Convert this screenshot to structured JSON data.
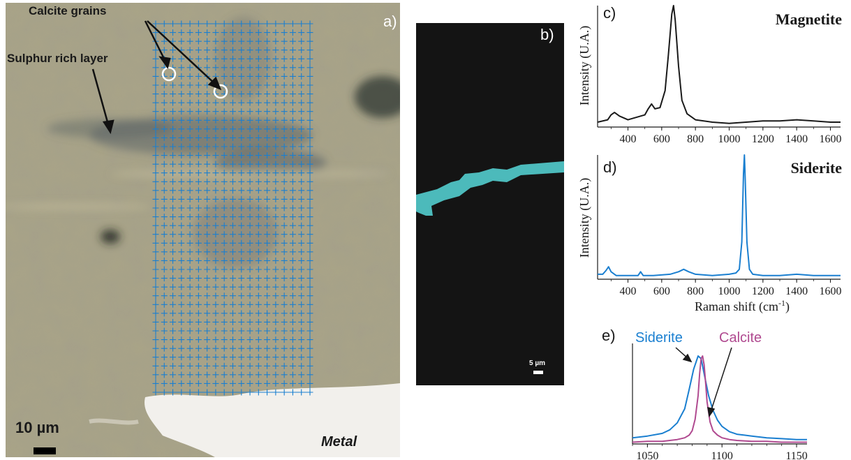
{
  "panel_a": {
    "letter": "a)",
    "annotations": {
      "calcite": "Calcite grains",
      "sulphur": "Sulphur rich layer",
      "metal": "Metal",
      "scale": "10 µm"
    },
    "grid_color": "#1a7fd0"
  },
  "panel_b": {
    "letter": "b)",
    "scale": "5 µm",
    "band_color": "#4fc3c4"
  },
  "chart_data": [
    {
      "id": "c",
      "type": "line",
      "panel_letter": "c)",
      "title": "Magnetite",
      "ylabel": "Intensity (U.A.)",
      "xlabel": "",
      "xlim": [
        220,
        1660
      ],
      "ylim": [
        0,
        1
      ],
      "xticks": [
        400,
        600,
        800,
        1000,
        1200,
        1400,
        1600
      ],
      "color": "#1a1a1a",
      "series": [
        {
          "x": [
            220,
            280,
            300,
            320,
            350,
            400,
            450,
            500,
            520,
            540,
            560,
            590,
            620,
            640,
            660,
            670,
            680,
            700,
            720,
            750,
            800,
            900,
            1000,
            1100,
            1200,
            1300,
            1400,
            1500,
            1600,
            1660
          ],
          "y": [
            0.04,
            0.06,
            0.1,
            0.12,
            0.09,
            0.06,
            0.08,
            0.1,
            0.15,
            0.19,
            0.15,
            0.16,
            0.3,
            0.6,
            0.93,
            1.0,
            0.88,
            0.5,
            0.22,
            0.11,
            0.06,
            0.04,
            0.03,
            0.04,
            0.05,
            0.05,
            0.06,
            0.05,
            0.04,
            0.04
          ]
        }
      ]
    },
    {
      "id": "d",
      "type": "line",
      "panel_letter": "d)",
      "title": "Siderite",
      "ylabel": "Intensity (U.A.)",
      "xlabel": "Raman shift (cm",
      "xlabel_sup": "-1",
      "xlabel_end": ")",
      "xlim": [
        220,
        1660
      ],
      "ylim": [
        0,
        1
      ],
      "xticks": [
        400,
        600,
        800,
        1000,
        1200,
        1400,
        1600
      ],
      "color": "#1a7fd0",
      "series": [
        {
          "x": [
            220,
            250,
            270,
            285,
            300,
            330,
            400,
            460,
            475,
            490,
            550,
            650,
            700,
            730,
            760,
            800,
            900,
            1000,
            1040,
            1060,
            1075,
            1085,
            1090,
            1095,
            1105,
            1120,
            1140,
            1200,
            1300,
            1400,
            1500,
            1600,
            1660
          ],
          "y": [
            0.04,
            0.04,
            0.07,
            0.1,
            0.06,
            0.03,
            0.03,
            0.03,
            0.06,
            0.03,
            0.03,
            0.04,
            0.06,
            0.08,
            0.06,
            0.04,
            0.03,
            0.04,
            0.05,
            0.08,
            0.3,
            0.85,
            1.0,
            0.8,
            0.3,
            0.08,
            0.04,
            0.03,
            0.03,
            0.04,
            0.03,
            0.03,
            0.03
          ]
        }
      ]
    },
    {
      "id": "e",
      "type": "line",
      "panel_letter": "e)",
      "xlim": [
        1040,
        1157
      ],
      "ylim": [
        0,
        1
      ],
      "xticks": [
        1050,
        1100,
        1150
      ],
      "series": [
        {
          "name": "Siderite",
          "color": "#1a7fd0",
          "x": [
            1040,
            1050,
            1060,
            1065,
            1070,
            1075,
            1078,
            1081,
            1084,
            1086,
            1088,
            1091,
            1094,
            1097,
            1100,
            1105,
            1110,
            1115,
            1120,
            1130,
            1140,
            1150,
            1157
          ],
          "y": [
            0.07,
            0.09,
            0.12,
            0.16,
            0.24,
            0.4,
            0.62,
            0.85,
            1.0,
            0.97,
            0.8,
            0.55,
            0.38,
            0.27,
            0.2,
            0.14,
            0.11,
            0.1,
            0.09,
            0.07,
            0.06,
            0.05,
            0.05
          ]
        },
        {
          "name": "Calcite",
          "color": "#b04a90",
          "x": [
            1040,
            1050,
            1060,
            1065,
            1070,
            1075,
            1078,
            1080,
            1082,
            1084,
            1085,
            1086,
            1087,
            1088,
            1089,
            1090,
            1092,
            1094,
            1097,
            1100,
            1105,
            1110,
            1120,
            1130,
            1140,
            1150,
            1157
          ],
          "y": [
            0.02,
            0.03,
            0.03,
            0.04,
            0.05,
            0.07,
            0.1,
            0.15,
            0.28,
            0.55,
            0.8,
            0.97,
            1.0,
            0.9,
            0.7,
            0.48,
            0.25,
            0.15,
            0.1,
            0.07,
            0.05,
            0.04,
            0.03,
            0.03,
            0.02,
            0.02,
            0.02
          ]
        }
      ]
    }
  ]
}
